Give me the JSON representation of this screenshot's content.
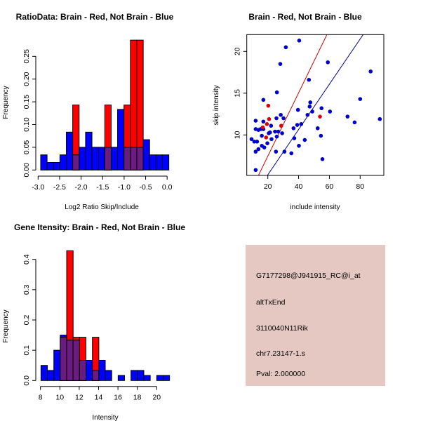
{
  "chart_data": [
    {
      "type": "histogram",
      "title": "RatioData: Brain - Red, Not Brain - Blue",
      "xlabel": "Log2 Ratio Skip/Include",
      "ylabel": "Frequency",
      "xticks": [
        -3.0,
        -2.5,
        -2.0,
        -1.5,
        -1.0,
        -0.5,
        0.0
      ],
      "xtick_labels": [
        "-3.0",
        "-2.5",
        "-2.0",
        "-1.5",
        "-1.0",
        "-0.5",
        "0.0"
      ],
      "yticks": [
        0,
        0.05,
        0.1,
        0.15,
        0.2,
        0.25
      ],
      "ytick_labels": [
        "0.00",
        "0.05",
        "0.10",
        "0.15",
        "0.20",
        "0.25"
      ],
      "breaks_start": -2.94,
      "bin_width": 0.149,
      "series": [
        {
          "name": "Not Brain",
          "color": "#0000ff",
          "values": [
            0.0333,
            0.0167,
            0.0167,
            0.0333,
            0.0833,
            0.0333,
            0.05,
            0.0833,
            0.05,
            0.05,
            0.05,
            0.05,
            0.1333,
            0.05,
            0.05,
            0.05,
            0.0667,
            0.0333,
            0.0333,
            0.0333
          ]
        },
        {
          "name": "Brain",
          "color": "#ff0000",
          "values": [
            0,
            0,
            0,
            0,
            0,
            0.1429,
            0,
            0,
            0,
            0,
            0.1429,
            0,
            0,
            0.1429,
            0.2857,
            0.2857,
            0,
            0,
            0,
            0
          ]
        }
      ],
      "overlap_color": "#6b1c80"
    },
    {
      "type": "scatter",
      "title": "Brain - Red, Not Brain - Blue",
      "xlabel": "include intensity",
      "ylabel": "skip intensity",
      "xticks": [
        20,
        40,
        60,
        80
      ],
      "xtick_labels": [
        "20",
        "40",
        "60",
        "80"
      ],
      "yticks": [
        10,
        15,
        20
      ],
      "ytick_labels": [
        "10",
        "15",
        "20"
      ],
      "xlim": [
        6.3,
        95.4
      ],
      "ylim": [
        5.15,
        22.0
      ],
      "series": [
        {
          "name": "Not Brain",
          "color": "#0000cc",
          "points": [
            [
              9.4,
              9.5
            ],
            [
              11.2,
              9.2
            ],
            [
              13.0,
              9.2
            ],
            [
              12.1,
              8.0
            ],
            [
              13.9,
              8.3
            ],
            [
              12.1,
              5.8
            ],
            [
              12.1,
              11.7
            ],
            [
              12.1,
              10.7
            ],
            [
              13.9,
              10.6
            ],
            [
              15.3,
              10.7
            ],
            [
              16.1,
              9.9
            ],
            [
              17.1,
              10.7
            ],
            [
              16.1,
              8.7
            ],
            [
              17.7,
              8.5
            ],
            [
              19.7,
              9.0
            ],
            [
              17.1,
              14.2
            ],
            [
              17.1,
              11.6
            ],
            [
              20.6,
              10.2
            ],
            [
              22.1,
              11.1
            ],
            [
              21.4,
              10.3
            ],
            [
              22.4,
              9.5
            ],
            [
              24.7,
              10.4
            ],
            [
              26.8,
              10.4
            ],
            [
              25.6,
              12.0
            ],
            [
              25.9,
              15.1
            ],
            [
              25.3,
              8.0
            ],
            [
              25.8,
              9.8
            ],
            [
              28.1,
              18.5
            ],
            [
              28.4,
              12.4
            ],
            [
              30.2,
              12.0
            ],
            [
              29.3,
              10.2
            ],
            [
              30.8,
              8.0
            ],
            [
              31.7,
              20.5
            ],
            [
              35.3,
              7.8
            ],
            [
              36.7,
              10.8
            ],
            [
              37.2,
              9.6
            ],
            [
              39.1,
              11.2
            ],
            [
              39.6,
              13.0
            ],
            [
              40.4,
              21.3
            ],
            [
              40.2,
              8.7
            ],
            [
              41.7,
              11.3
            ],
            [
              44.0,
              9.4
            ],
            [
              45.8,
              12.4
            ],
            [
              46.7,
              16.6
            ],
            [
              47.2,
              13.4
            ],
            [
              47.6,
              13.9
            ],
            [
              48.9,
              12.8
            ],
            [
              52.4,
              10.8
            ],
            [
              54.5,
              9.9
            ],
            [
              54.9,
              13.2
            ],
            [
              55.5,
              7.1
            ],
            [
              59.0,
              18.7
            ],
            [
              60.4,
              12.8
            ],
            [
              71.8,
              12.2
            ],
            [
              76.4,
              11.5
            ],
            [
              80.0,
              14.3
            ],
            [
              86.8,
              17.6
            ],
            [
              92.8,
              11.9
            ]
          ]
        },
        {
          "name": "Brain",
          "color": "#dd0000",
          "points": [
            [
              20.3,
              13.5
            ],
            [
              19.4,
              11.3
            ],
            [
              20.8,
              11.9
            ],
            [
              16.7,
              10.9
            ],
            [
              18.9,
              9.7
            ],
            [
              28.7,
              11.1
            ],
            [
              53.9,
              12.2
            ]
          ]
        }
      ],
      "lines": [
        {
          "name": "Brain fit",
          "color": "#cc0000",
          "slope": 0.379,
          "intercept": -0.12
        },
        {
          "name": "Not Brain fit",
          "color": "#00008b",
          "slope": 0.271,
          "intercept": -0.19
        }
      ]
    },
    {
      "type": "histogram",
      "title": "Gene Itensity: Brain - Red, Not Brain - Blue",
      "xlabel": "Intensity",
      "ylabel": "Frequency",
      "xticks": [
        8,
        10,
        12,
        14,
        16,
        18,
        20
      ],
      "xtick_labels": [
        "8",
        "10",
        "12",
        "14",
        "16",
        "18",
        "20"
      ],
      "yticks": [
        0,
        0.1,
        0.2,
        0.3,
        0.4
      ],
      "ytick_labels": [
        "0.0",
        "0.1",
        "0.2",
        "0.3",
        "0.4"
      ],
      "breaks_start": 8.05,
      "bin_width": 0.664,
      "series": [
        {
          "name": "Not Brain",
          "color": "#0000ff",
          "values": [
            0.05,
            0.0333,
            0.1,
            0.15,
            0.1333,
            0.1333,
            0.0667,
            0.0667,
            0.0333,
            0.0667,
            0.0333,
            0,
            0.0167,
            0,
            0.0333,
            0.0333,
            0.0167,
            0,
            0.0167,
            0.0167
          ]
        },
        {
          "name": "Brain",
          "color": "#ff0000",
          "values": [
            0,
            0,
            0,
            0.1429,
            0.4286,
            0.1429,
            0.1429,
            0,
            0.1429,
            0,
            0,
            0,
            0,
            0,
            0,
            0,
            0,
            0,
            0,
            0
          ]
        }
      ],
      "overlap_color": "#6b1c80"
    }
  ],
  "info_panel": {
    "background": "#e5c8c1",
    "probe": "G7177298@J941915_RC@i_at",
    "event_type": "altTxEnd",
    "gene": "3110040N11Rik",
    "location": "chr7.23147-1.s",
    "pval": "Pval: 2.000000",
    "pval_color": "#aa0000"
  }
}
